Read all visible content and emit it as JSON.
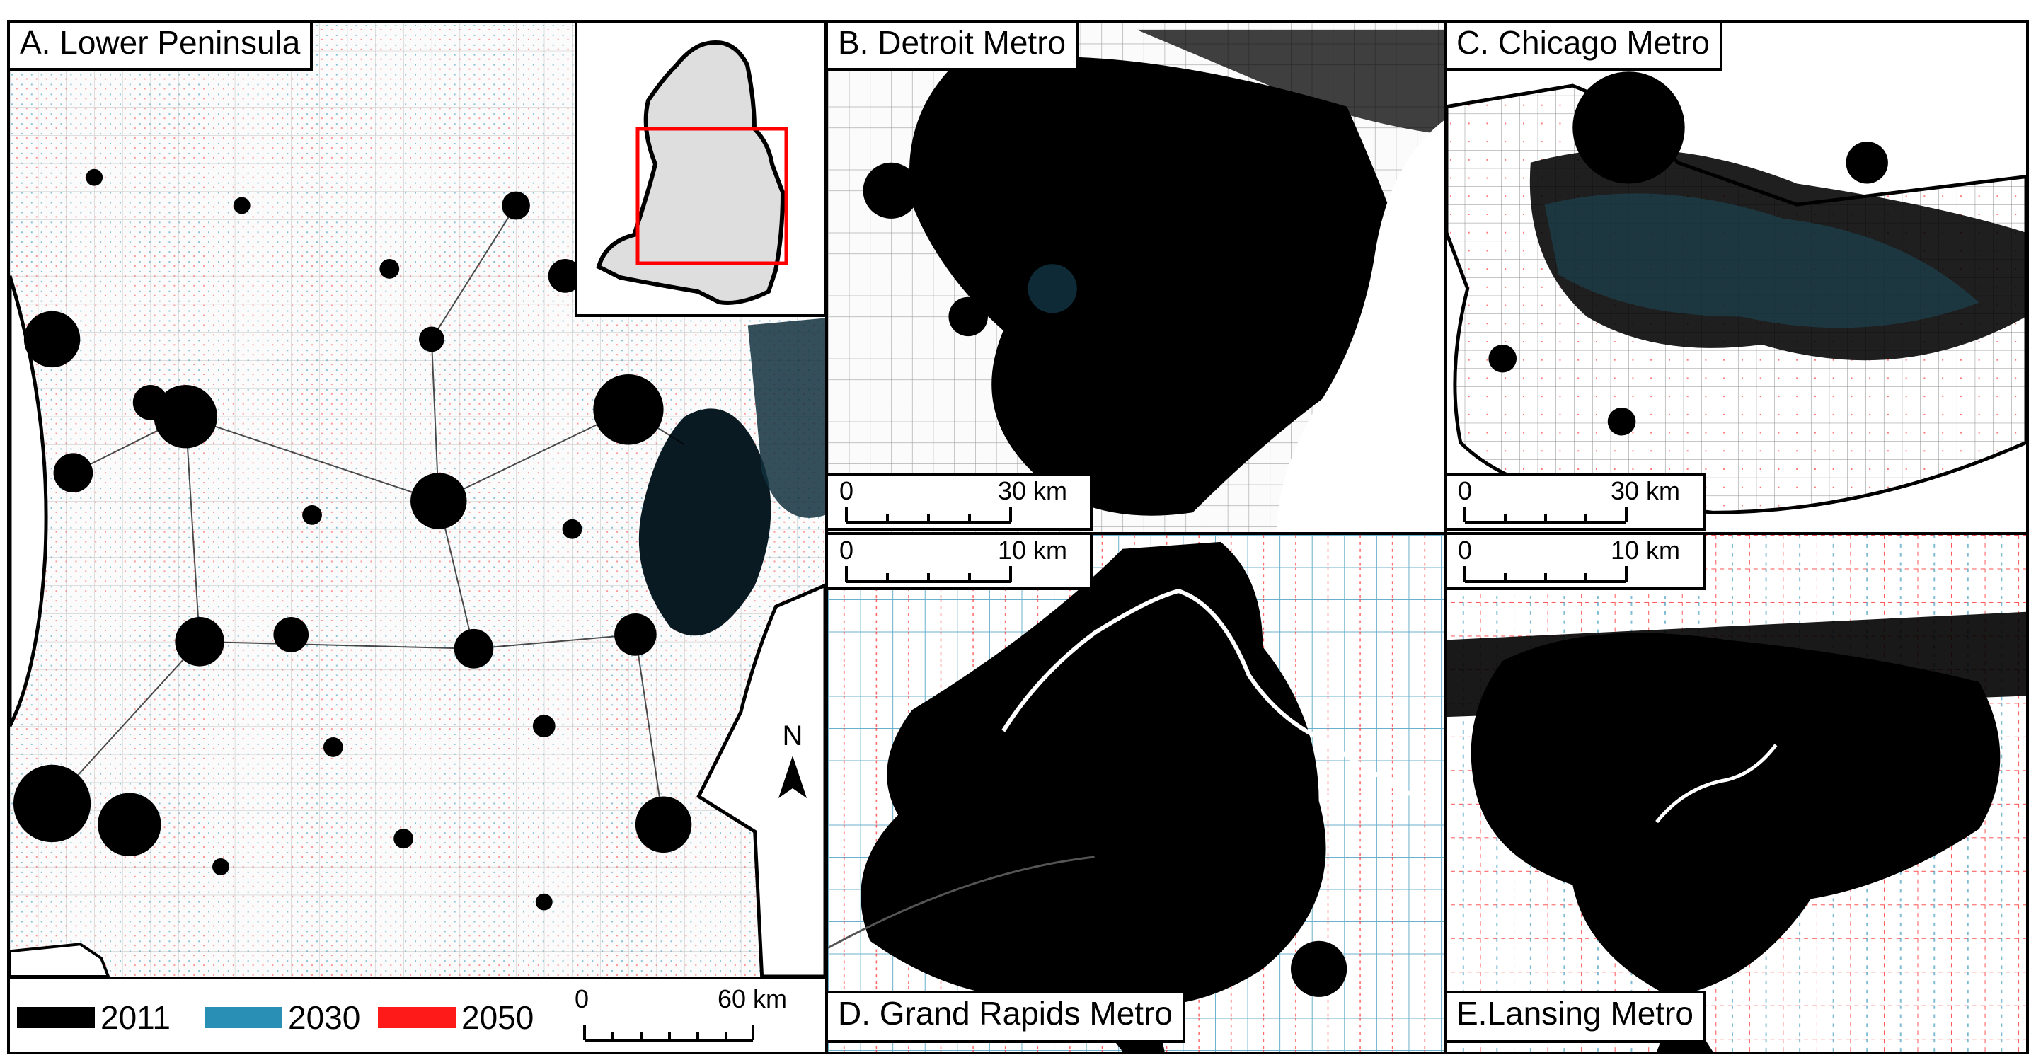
{
  "panels": {
    "a": {
      "title": "A. Lower Peninsula"
    },
    "b": {
      "title": "B. Detroit Metro"
    },
    "c": {
      "title": "C. Chicago Metro"
    },
    "d": {
      "title": "D. Grand Rapids Metro"
    },
    "e": {
      "title": "E.Lansing Metro"
    }
  },
  "scalebars": {
    "a": {
      "start": "0",
      "end": "60 km"
    },
    "b": {
      "start": "0",
      "end": "30 km"
    },
    "c": {
      "start": "0",
      "end": "30 km"
    },
    "d": {
      "start": "0",
      "end": "10 km"
    },
    "e": {
      "start": "0",
      "end": "10 km"
    }
  },
  "legend": {
    "items": [
      {
        "label": "2011",
        "color": "#000000"
      },
      {
        "label": "2030",
        "color": "#2a8fb5"
      },
      {
        "label": "2050",
        "color": "#ff1a1a"
      }
    ]
  },
  "north_arrow": {
    "label": "N"
  },
  "colors": {
    "built_2011": "#000000",
    "built_2030": "#2a8fb5",
    "built_2050": "#ff1a1a",
    "inset_land": "#dedede",
    "inset_box": "#ff0000"
  }
}
